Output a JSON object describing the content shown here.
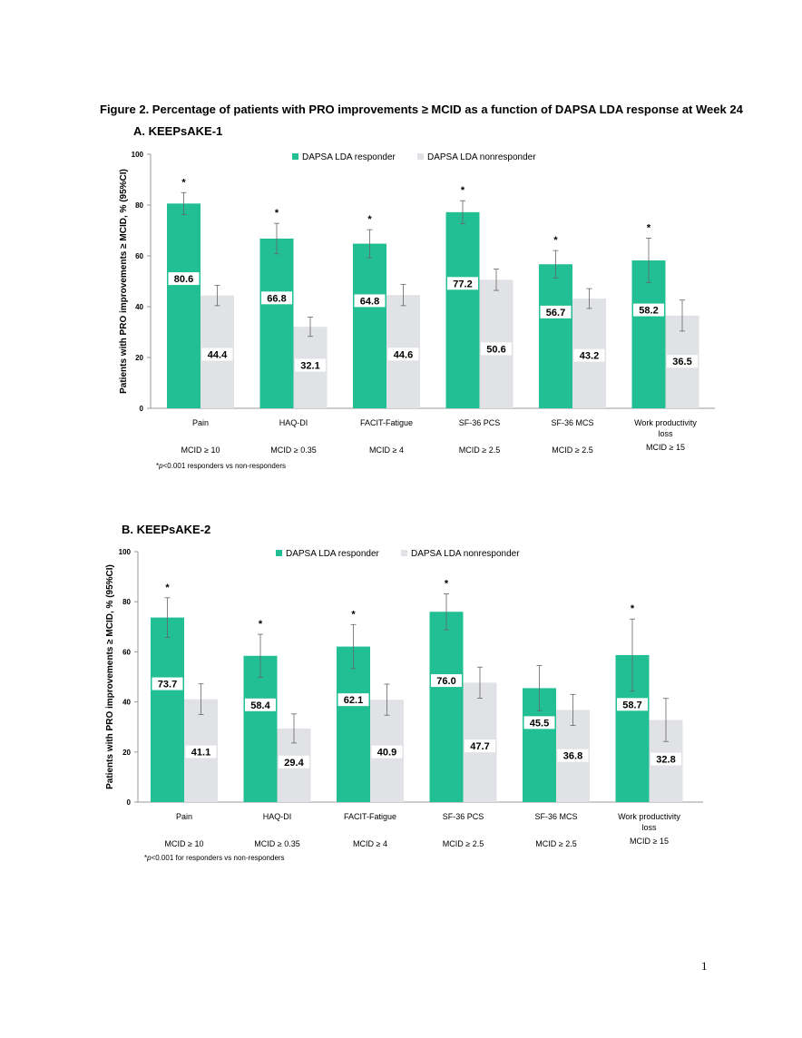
{
  "figure_title": "Figure 2. Percentage of patients with PRO improvements ≥ MCID as a function of DAPSA LDA response at Week 24",
  "page_number": "1",
  "colors": {
    "responder": "#21bf93",
    "nonresponder": "#e1e2e6",
    "error_bar": "#666666"
  },
  "chart_data": [
    {
      "type": "bar",
      "panel_title": "A. KEEPsAKE-1",
      "ylabel": "Patients with PRO improvements ≥ MCID, % (95%CI)",
      "ylim": [
        0,
        100
      ],
      "yticks": [
        "0",
        "20",
        "40",
        "60",
        "80",
        "100"
      ],
      "legend_position": "top-center",
      "categories": [
        "Pain",
        "HAQ-DI",
        "FACIT-Fatigue",
        "SF-36 PCS",
        "SF-36 MCS",
        "Work productivity loss"
      ],
      "mcid_labels": [
        "MCID ≥ 10",
        "MCID ≥ 0.35",
        "MCID ≥ 4",
        "MCID ≥ 2.5",
        "MCID ≥ 2.5",
        "MCID ≥ 15"
      ],
      "series": [
        {
          "name": "DAPSA LDA responder",
          "values": [
            80.6,
            66.8,
            64.8,
            77.2,
            56.7,
            58.2
          ],
          "value_labels": [
            "80.6",
            "66.8",
            "64.8",
            "77.2",
            "56.7",
            "58.2"
          ],
          "ci_low": [
            76.3,
            60.8,
            59.3,
            72.7,
            51.3,
            49.4
          ],
          "ci_high": [
            84.9,
            72.8,
            70.3,
            81.7,
            62.1,
            67.0
          ],
          "significant": [
            true,
            true,
            true,
            true,
            true,
            true
          ]
        },
        {
          "name": "DAPSA LDA nonresponder",
          "values": [
            44.4,
            32.1,
            44.6,
            50.6,
            43.2,
            36.5
          ],
          "value_labels": [
            "44.4",
            "32.1",
            "44.6",
            "50.6",
            "43.2",
            "36.5"
          ],
          "ci_low": [
            40.4,
            28.3,
            40.4,
            46.4,
            39.3,
            30.4
          ],
          "ci_high": [
            48.4,
            35.9,
            48.8,
            54.8,
            47.1,
            42.6
          ]
        }
      ],
      "footnote": "*p<0.001 responders vs non-responders"
    },
    {
      "type": "bar",
      "panel_title": "B. KEEPsAKE-2",
      "ylabel": "Patients with PRO improvements ≥ MCID, % (95%CI)",
      "ylim": [
        0,
        100
      ],
      "yticks": [
        "0",
        "20",
        "40",
        "60",
        "80",
        "100"
      ],
      "legend_position": "top-center",
      "categories": [
        "Pain",
        "HAQ-DI",
        "FACIT-Fatigue",
        "SF-36 PCS",
        "SF-36 MCS",
        "Work productivity loss"
      ],
      "mcid_labels": [
        "MCID ≥ 10",
        "MCID ≥ 0.35",
        "MCID ≥ 4",
        "MCID ≥ 2.5",
        "MCID ≥ 2.5",
        "MCID ≥ 15"
      ],
      "series": [
        {
          "name": "DAPSA LDA responder",
          "values": [
            73.7,
            58.4,
            62.1,
            76.0,
            45.5,
            58.7
          ],
          "value_labels": [
            "73.7",
            "58.4",
            "62.1",
            "76.0",
            "45.5",
            "58.7"
          ],
          "ci_low": [
            65.8,
            49.8,
            53.3,
            68.8,
            36.5,
            44.3
          ],
          "ci_high": [
            81.6,
            67.0,
            70.9,
            83.2,
            54.5,
            73.1
          ],
          "significant": [
            true,
            true,
            true,
            true,
            false,
            true
          ]
        },
        {
          "name": "DAPSA LDA nonresponder",
          "values": [
            41.1,
            29.4,
            40.9,
            47.7,
            36.8,
            32.8
          ],
          "value_labels": [
            "41.1",
            "29.4",
            "40.9",
            "47.7",
            "36.8",
            "32.8"
          ],
          "ci_low": [
            35.0,
            23.6,
            34.7,
            41.5,
            30.6,
            24.2
          ],
          "ci_high": [
            47.2,
            35.2,
            47.1,
            53.9,
            43.0,
            41.4
          ]
        }
      ],
      "footnote": "*p<0.001 for responders vs non-responders"
    }
  ]
}
